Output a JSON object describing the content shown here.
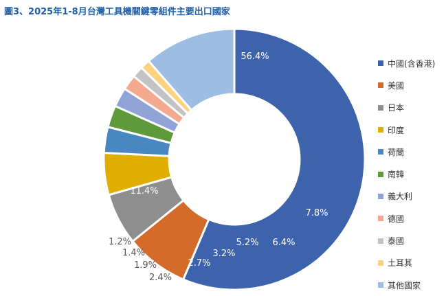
{
  "title": "圖3、2025年1-8月台灣工具機關鍵零組件主要出口國家",
  "chart_data": {
    "type": "pie",
    "title": "圖3、2025年1-8月台灣工具機關鍵零組件主要出口國家",
    "donut": true,
    "legend_placement": "right",
    "series": [
      {
        "name": "中國(含香港)",
        "value": 56.4,
        "label": "56.4%",
        "color": "#3d63ad"
      },
      {
        "name": "美國",
        "value": 7.8,
        "label": "7.8%",
        "color": "#d46b2b"
      },
      {
        "name": "日本",
        "value": 6.4,
        "label": "6.4%",
        "color": "#8e8e8e"
      },
      {
        "name": "印度",
        "value": 5.2,
        "label": "5.2%",
        "color": "#e0ad00"
      },
      {
        "name": "荷蘭",
        "value": 3.2,
        "label": "3.2%",
        "color": "#4a87c2"
      },
      {
        "name": "南韓",
        "value": 2.7,
        "label": "2.7%",
        "color": "#5e9a3a"
      },
      {
        "name": "義大利",
        "value": 2.4,
        "label": "2.4%",
        "color": "#8fa3d6"
      },
      {
        "name": "德國",
        "value": 1.9,
        "label": "1.9%",
        "color": "#f2a98e"
      },
      {
        "name": "泰國",
        "value": 1.4,
        "label": "1.4%",
        "color": "#c3c3c3"
      },
      {
        "name": "土耳其",
        "value": 1.2,
        "label": "1.2%",
        "color": "#fdd27f"
      },
      {
        "name": "其他國家",
        "value": 11.4,
        "label": "11.4%",
        "color": "#9dbde3"
      }
    ]
  }
}
